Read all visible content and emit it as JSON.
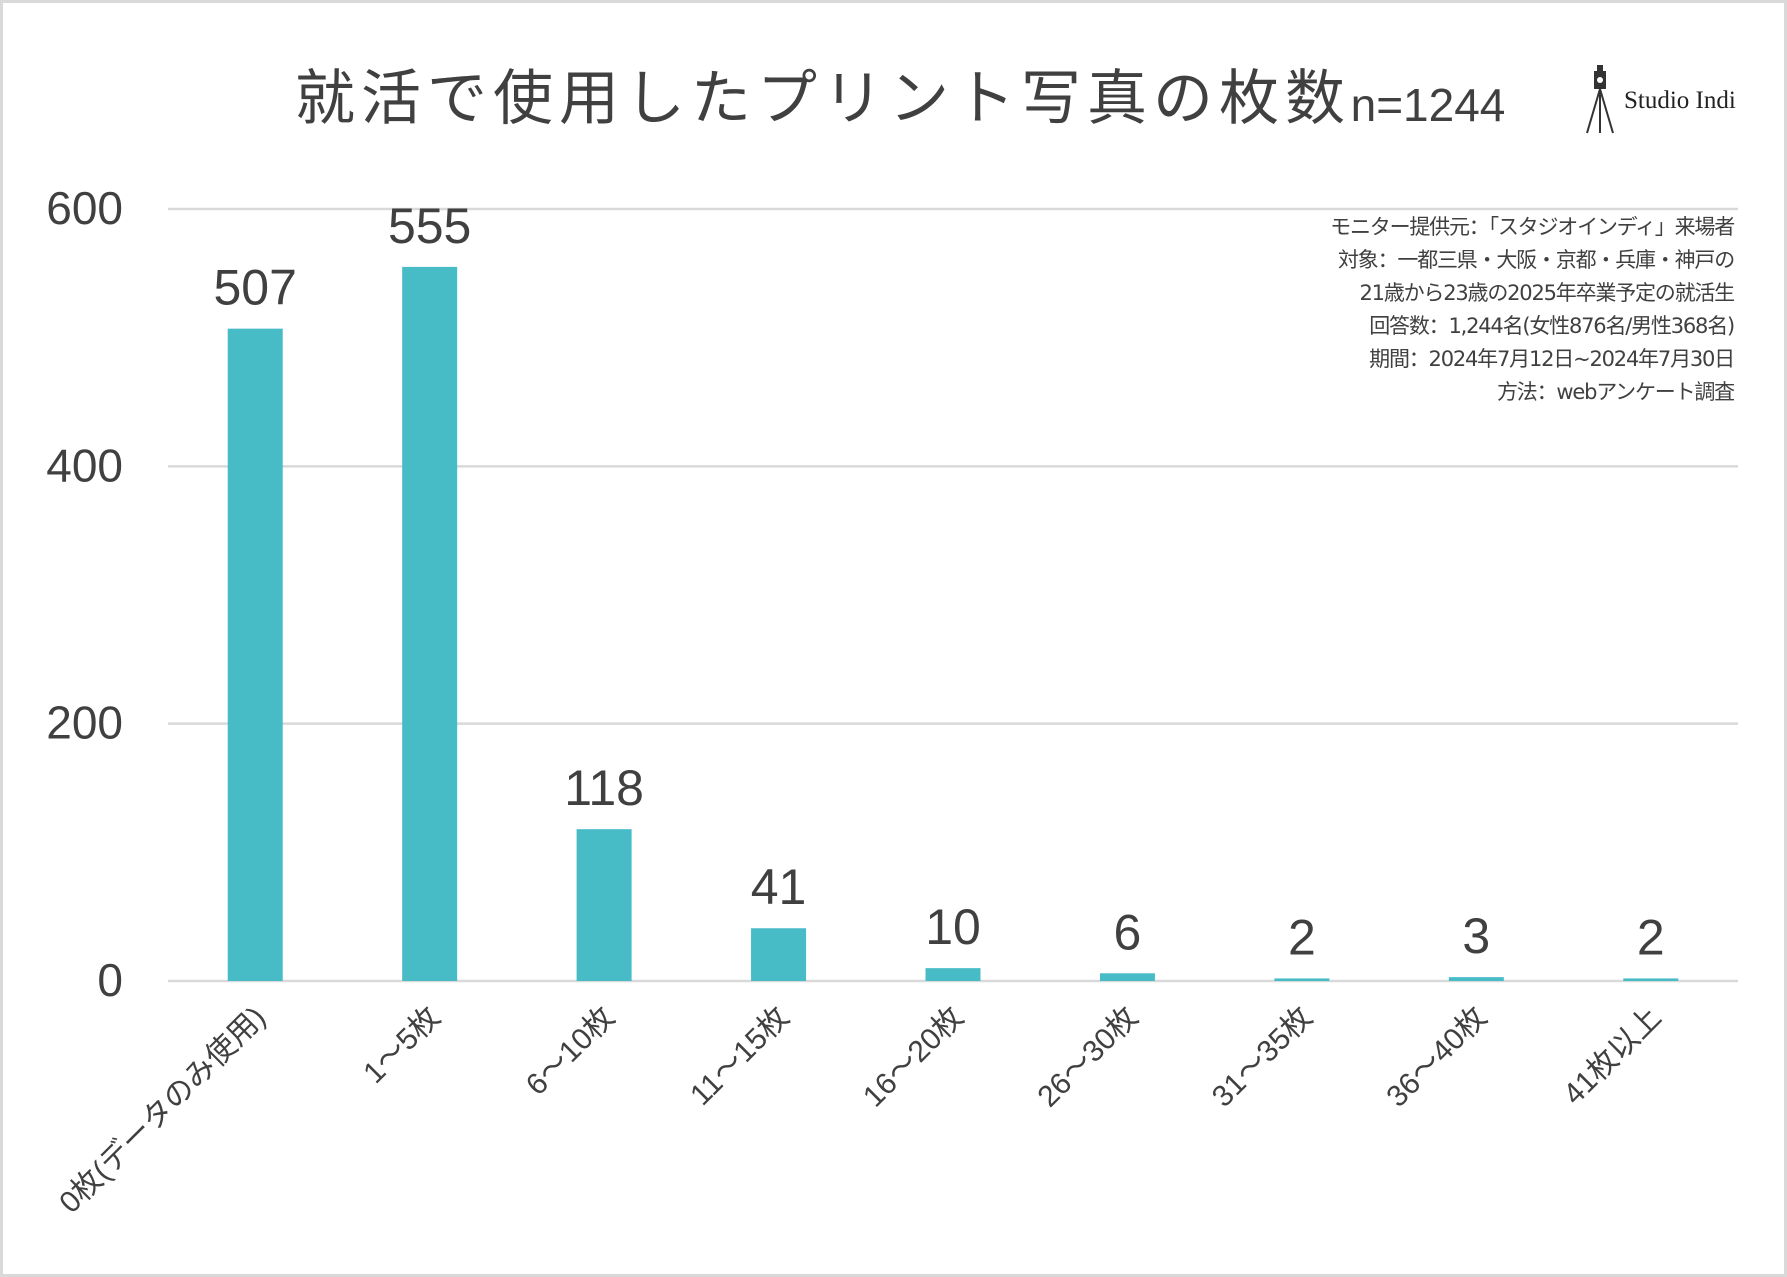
{
  "chart_data": {
    "type": "bar",
    "title": "就活で使用したプリント写真の枚数",
    "subtitle": "n=1244",
    "categories": [
      "0枚(データのみ使用)",
      "1～5枚",
      "6～10枚",
      "11～15枚",
      "16～20枚",
      "26～30枚",
      "31～35枚",
      "36～40枚",
      "41枚以上"
    ],
    "values": [
      507,
      555,
      118,
      41,
      10,
      6,
      2,
      3,
      2
    ],
    "ylim": [
      0,
      600
    ],
    "yticks": [
      0,
      200,
      400,
      600
    ],
    "grid": true,
    "xlabel": "",
    "ylabel": "",
    "bar_color": "#47bcc7"
  },
  "logo": {
    "text": "Studio Indi",
    "icon": "camera-tripod-icon"
  },
  "notes": [
    "モニター提供元：「スタジオインディ」来場者",
    "対象：一都三県・大阪・京都・兵庫・神戸の",
    "21歳から23歳の2025年卒業予定の就活生",
    "回答数：1,244名(女性876名/男性368名)",
    "期間：2024年7月12日~2024年7月30日",
    "方法：webアンケート調査"
  ]
}
